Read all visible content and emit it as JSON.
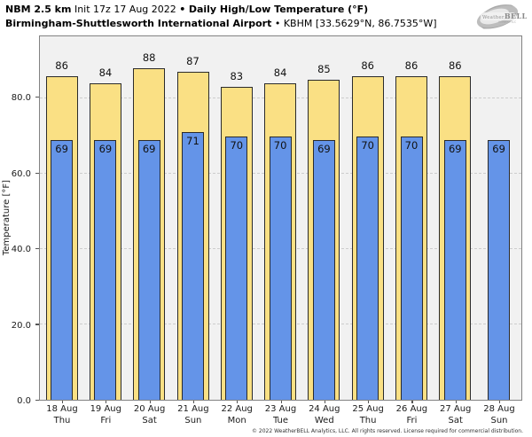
{
  "header": {
    "line1": {
      "model": "NBM 2.5 km",
      "init": "Init 17z 17 Aug 2022",
      "bullet": "•",
      "product": "Daily High/Low Temperature (°F)"
    },
    "line2": {
      "station": "Birmingham-Shuttlesworth International Airport",
      "bullet": "•",
      "station_id": "KBHM [33.5629°N, 86.7535°W]"
    }
  },
  "logo": {
    "brand_weather": "Weather",
    "brand_bell": "BELL",
    "brand_sub": "Analytics LLC"
  },
  "chart_data": {
    "type": "bar",
    "title": "NBM 2.5 km Init 17z 17 Aug 2022 • Daily High/Low Temperature (°F)",
    "subtitle": "Birmingham-Shuttlesworth International Airport • KBHM [33.5629°N, 86.7535°W]",
    "ylabel": "Temperature [°F]",
    "ylim": [
      0,
      96.5
    ],
    "yticks": [
      "0.0",
      "20.0",
      "40.0",
      "60.0",
      "80.0"
    ],
    "grid": "horizontal dashed at yticks",
    "legend_position": "none",
    "categories": [
      {
        "date": "18 Aug",
        "day": "Thu"
      },
      {
        "date": "19 Aug",
        "day": "Fri"
      },
      {
        "date": "20 Aug",
        "day": "Sat"
      },
      {
        "date": "21 Aug",
        "day": "Sun"
      },
      {
        "date": "22 Aug",
        "day": "Mon"
      },
      {
        "date": "23 Aug",
        "day": "Tue"
      },
      {
        "date": "24 Aug",
        "day": "Wed"
      },
      {
        "date": "25 Aug",
        "day": "Thu"
      },
      {
        "date": "26 Aug",
        "day": "Fri"
      },
      {
        "date": "27 Aug",
        "day": "Sat"
      },
      {
        "date": "28 Aug",
        "day": "Sun"
      }
    ],
    "series": [
      {
        "name": "Daily High",
        "color": "#fae084",
        "values": [
          86,
          84,
          88,
          87,
          83,
          84,
          85,
          86,
          86,
          86,
          null
        ]
      },
      {
        "name": "Daily Low",
        "color": "#6494e8",
        "values": [
          69,
          69,
          69,
          71,
          70,
          70,
          69,
          70,
          70,
          69,
          69
        ]
      }
    ]
  },
  "colors": {
    "high_bar": "#fae084",
    "low_bar": "#6494e8",
    "bar_border": "#2b2b2b",
    "plot_background": "#f1f1f1",
    "plot_frame": "#828282",
    "gridline": "#cdcdcd"
  },
  "footer": {
    "copyright": "© 2022 WeatherBELL Analytics, LLC. All rights reserved. License required for commercial distribution."
  }
}
